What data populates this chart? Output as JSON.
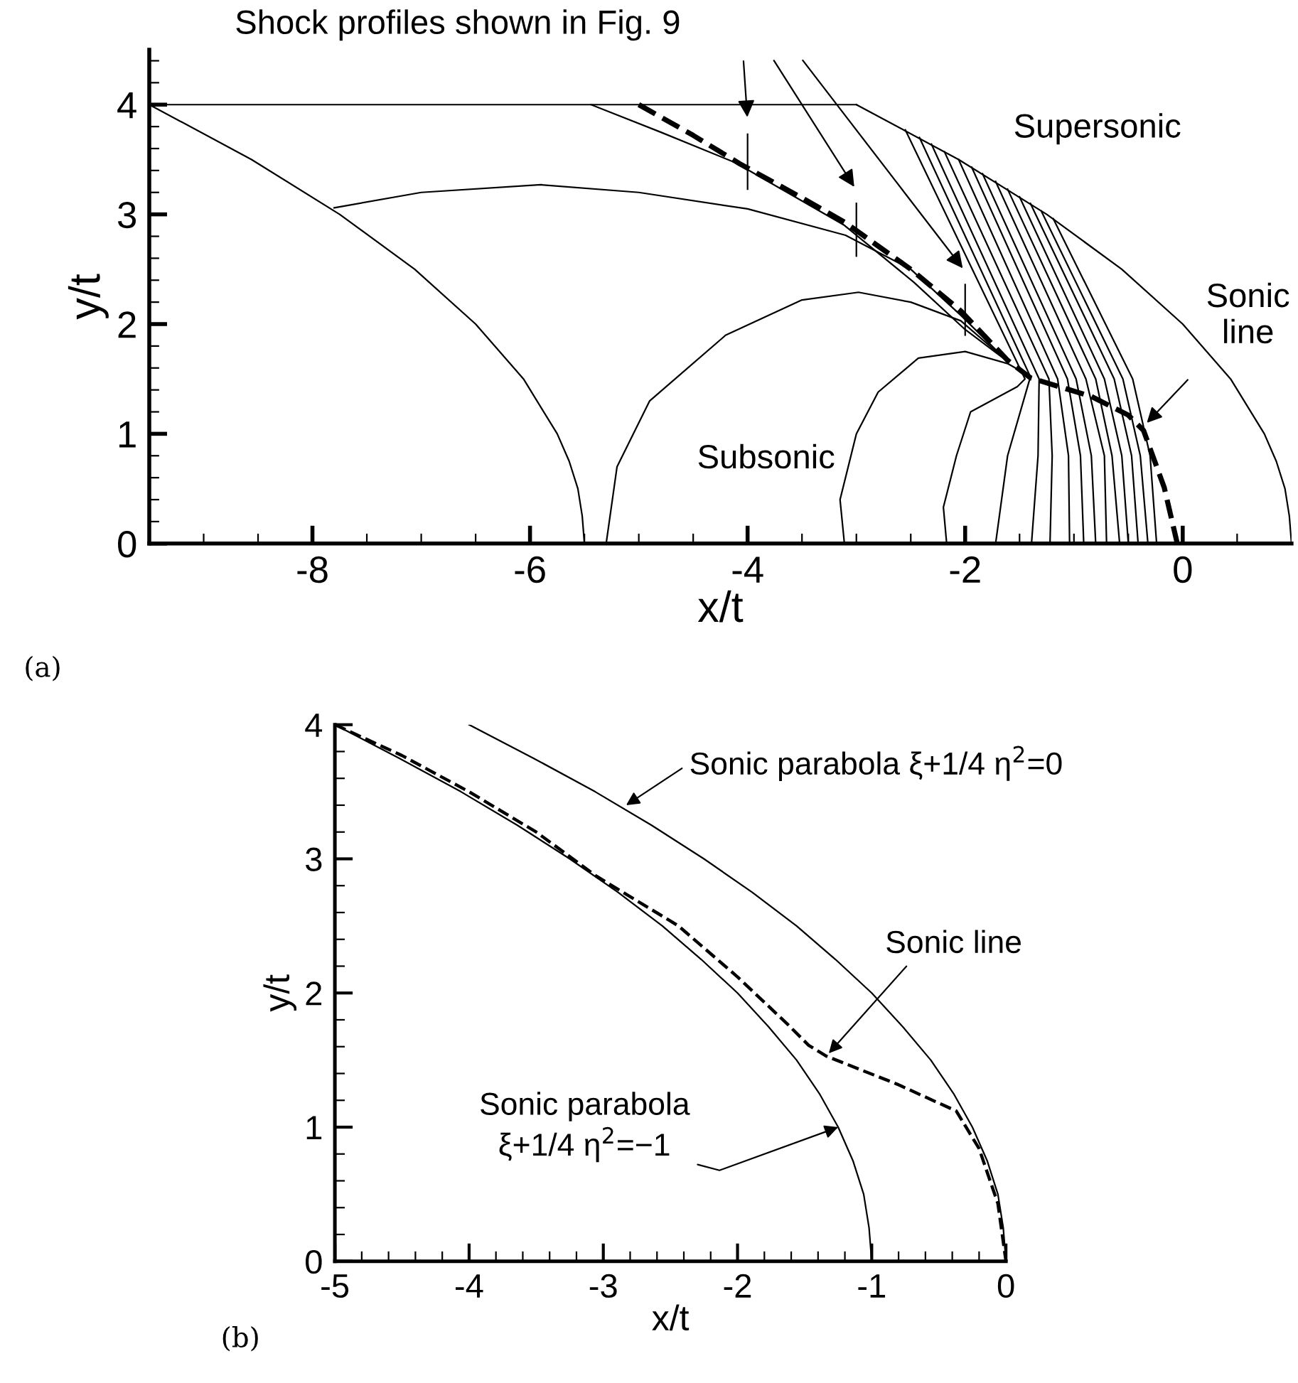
{
  "chart_data": [
    {
      "type": "line",
      "title": "(a)",
      "xlabel": "x/t",
      "ylabel": "y/t",
      "xlim": [
        -9.5,
        1
      ],
      "ylim": [
        0,
        4.5
      ],
      "xticks": [
        {
          "value": -9.5,
          "label": null
        },
        {
          "value": -9,
          "label": null
        },
        {
          "value": -8.5,
          "label": null
        },
        -8,
        {
          "value": -7.5,
          "label": null
        },
        {
          "value": -7,
          "label": null
        },
        {
          "value": -6.5,
          "label": null
        },
        -6,
        {
          "value": -5.5,
          "label": null
        },
        {
          "value": -5,
          "label": null
        },
        {
          "value": -4.5,
          "label": null
        },
        -4,
        {
          "value": -3.5,
          "label": null
        },
        {
          "value": -3,
          "label": null
        },
        {
          "value": -2.5,
          "label": null
        },
        -2,
        {
          "value": -1.5,
          "label": null
        },
        {
          "value": -1,
          "label": null
        },
        {
          "value": -0.5,
          "label": null
        },
        0,
        {
          "value": 0.5,
          "label": null
        }
      ],
      "yticks": [
        0,
        {
          "value": 0.2,
          "label": null
        },
        {
          "value": 0.4,
          "label": null
        },
        {
          "value": 0.6,
          "label": null
        },
        {
          "value": 0.8,
          "label": null
        },
        1,
        {
          "value": 1.2,
          "label": null
        },
        {
          "value": 1.4,
          "label": null
        },
        {
          "value": 1.6,
          "label": null
        },
        {
          "value": 1.8,
          "label": null
        },
        2,
        {
          "value": 2.2,
          "label": null
        },
        {
          "value": 2.4,
          "label": null
        },
        {
          "value": 2.6,
          "label": null
        },
        {
          "value": 2.8,
          "label": null
        },
        3,
        {
          "value": 3.2,
          "label": null
        },
        {
          "value": 3.4,
          "label": null
        },
        {
          "value": 3.6,
          "label": null
        },
        {
          "value": 3.8,
          "label": null
        },
        4,
        {
          "value": 4.2,
          "label": null
        },
        {
          "value": 4.4,
          "label": null
        }
      ],
      "grid": false,
      "annotations": [
        "Shock profiles shown in Fig. 9",
        "Supersonic",
        "Subsonic",
        {
          "text": "Sonic\nline",
          "x": -0.33,
          "y": 1.1
        }
      ],
      "series": [
        {
          "color": "#000000",
          "x": [
            -9.5,
            -3
          ],
          "values": [
            4,
            4
          ]
        },
        {
          "color": "#000000",
          "x": [
            -3,
            -2.06,
            -1.25,
            -0.56,
            0,
            0.44,
            0.75,
            0.86,
            0.94,
            0.98,
            1
          ],
          "values": [
            4,
            3.5,
            3,
            2.5,
            2,
            1.5,
            1,
            0.75,
            0.5,
            0.25,
            0
          ]
        },
        {
          "color": "#000000",
          "x": [
            -9.5,
            -8.56,
            -7.75,
            -7.06,
            -6.5,
            -6.06,
            -5.75,
            -5.64,
            -5.56,
            -5.52,
            -5.5
          ],
          "values": [
            4,
            3.5,
            3,
            2.5,
            2,
            1.5,
            1,
            0.75,
            0.5,
            0.25,
            0
          ]
        },
        {
          "color": "#000000",
          "x": [
            -7.8,
            -7,
            -5.9,
            -5,
            -4,
            -3.1,
            -2.5,
            -2.04,
            -1.61
          ],
          "values": [
            3.06,
            3.2,
            3.27,
            3.2,
            3.05,
            2.81,
            2.5,
            2.08,
            1.66
          ]
        },
        {
          "color": "#000000",
          "x": [
            -5.44,
            -4.8,
            -4.11,
            -3.11,
            -2.47,
            -2,
            -1.61
          ],
          "values": [
            4,
            3.75,
            3.47,
            2.9,
            2.38,
            1.95,
            1.66
          ]
        },
        {
          "color": "#000000",
          "x": [
            -5.3,
            -5.2,
            -4.9,
            -4.2,
            -3.5,
            -2.98,
            -2.5,
            -2.04,
            -1.61
          ],
          "values": [
            0,
            0.7,
            1.3,
            1.9,
            2.22,
            2.29,
            2.2,
            2.03,
            1.66
          ]
        },
        {
          "color": "#000000",
          "x": [
            -3.11,
            -3.15,
            -3,
            -2.8,
            -2.43,
            -2,
            -1.61,
            -1.45
          ],
          "values": [
            0,
            0.4,
            1,
            1.38,
            1.69,
            1.75,
            1.64,
            1.55
          ]
        },
        {
          "color": "#000000",
          "x": [
            -2.17,
            -2.2,
            -2.08,
            -1.95,
            -1.52,
            -1.45,
            -2.55
          ],
          "values": [
            0,
            0.33,
            0.8,
            1.2,
            1.43,
            1.5,
            3.77
          ]
        },
        {
          "color": "#000000",
          "x": [
            -1.72,
            -1.61,
            -1.4,
            -2.42
          ],
          "values": [
            0,
            0.8,
            1.52,
            3.7
          ]
        },
        {
          "color": "#000000",
          "x": [
            -1.39,
            -1.33,
            -1.32,
            -2.31
          ],
          "values": [
            0,
            0.8,
            1.5,
            3.64
          ]
        },
        {
          "color": "#000000",
          "x": [
            -1.22,
            -1.2,
            -1.23,
            -2.19
          ],
          "values": [
            0,
            0.8,
            1.5,
            3.57
          ]
        },
        {
          "color": "#000000",
          "x": [
            -1.04,
            -1.05,
            -1.15,
            -2.06
          ],
          "values": [
            0,
            0.8,
            1.5,
            3.5
          ]
        },
        {
          "color": "#000000",
          "x": [
            -0.91,
            -0.94,
            -1.06,
            -1.94
          ],
          "values": [
            0,
            0.8,
            1.5,
            3.43
          ]
        },
        {
          "color": "#000000",
          "x": [
            -0.8,
            -0.84,
            -0.98,
            -1.84
          ],
          "values": [
            0,
            0.8,
            1.5,
            3.37
          ]
        },
        {
          "color": "#000000",
          "x": [
            -0.7,
            -0.72,
            -0.89,
            -1.72
          ],
          "values": [
            0,
            0.8,
            1.5,
            3.3
          ]
        },
        {
          "color": "#000000",
          "x": [
            -0.58,
            -0.65,
            -0.8,
            -1.61
          ],
          "values": [
            0,
            0.8,
            1.5,
            3.23
          ]
        },
        {
          "color": "#000000",
          "x": [
            -0.5,
            -0.56,
            -0.72,
            -1.5
          ],
          "values": [
            0,
            0.8,
            1.5,
            3.16
          ]
        },
        {
          "color": "#000000",
          "x": [
            -0.41,
            -0.47,
            -0.63,
            -1.4
          ],
          "values": [
            0,
            0.8,
            1.5,
            3.1
          ]
        },
        {
          "color": "#000000",
          "x": [
            -0.32,
            -0.39,
            -0.55,
            -1.3
          ],
          "values": [
            0,
            0.8,
            1.5,
            3.03
          ]
        },
        {
          "color": "#000000",
          "x": [
            -0.24,
            -0.3,
            -0.46,
            -1.19
          ],
          "values": [
            0,
            0.8,
            1.5,
            2.96
          ]
        },
        {
          "color": "#000000",
          "line_style": "dashed",
          "x": [
            -5,
            -4.5,
            -4.07,
            -3.5,
            -3.11,
            -2.5,
            -2.04,
            -1.61,
            -1.4,
            -0.84,
            -0.5,
            -0.36,
            -0.17,
            -0.05
          ],
          "values": [
            4,
            3.72,
            3.46,
            3.15,
            2.93,
            2.5,
            2.12,
            1.67,
            1.51,
            1.34,
            1.17,
            1.03,
            0.51,
            0
          ]
        },
        {
          "color": "#000000",
          "x": [
            -4,
            -4
          ],
          "values": [
            3.23,
            3.73
          ]
        },
        {
          "color": "#000000",
          "x": [
            -3,
            -3
          ],
          "values": [
            2.62,
            3.1
          ]
        },
        {
          "color": "#000000",
          "x": [
            -2,
            -2
          ],
          "values": [
            1.9,
            2.36
          ]
        }
      ]
    },
    {
      "type": "line",
      "title": "(b)",
      "xlabel": "x/t",
      "ylabel": "y/t",
      "xlim": [
        -5,
        0
      ],
      "ylim": [
        0,
        4
      ],
      "xticks": [
        -5,
        {
          "value": -4.8,
          "label": null
        },
        {
          "value": -4.6,
          "label": null
        },
        {
          "value": -4.4,
          "label": null
        },
        {
          "value": -4.2,
          "label": null
        },
        -4,
        {
          "value": -3.8,
          "label": null
        },
        {
          "value": -3.6,
          "label": null
        },
        {
          "value": -3.4,
          "label": null
        },
        {
          "value": -3.2,
          "label": null
        },
        -3,
        {
          "value": -2.8,
          "label": null
        },
        {
          "value": -2.6,
          "label": null
        },
        {
          "value": -2.4,
          "label": null
        },
        {
          "value": -2.2,
          "label": null
        },
        -2,
        {
          "value": -1.8,
          "label": null
        },
        {
          "value": -1.6,
          "label": null
        },
        {
          "value": -1.4,
          "label": null
        },
        {
          "value": -1.2,
          "label": null
        },
        -1,
        {
          "value": -0.8,
          "label": null
        },
        {
          "value": -0.6,
          "label": null
        },
        {
          "value": -0.4,
          "label": null
        },
        {
          "value": -0.2,
          "label": null
        },
        0
      ],
      "yticks": [
        0,
        {
          "value": 0.2,
          "label": null
        },
        {
          "value": 0.4,
          "label": null
        },
        {
          "value": 0.6,
          "label": null
        },
        {
          "value": 0.8,
          "label": null
        },
        1,
        {
          "value": 1.2,
          "label": null
        },
        {
          "value": 1.4,
          "label": null
        },
        {
          "value": 1.6,
          "label": null
        },
        {
          "value": 1.8,
          "label": null
        },
        2,
        {
          "value": 2.2,
          "label": null
        },
        {
          "value": 2.4,
          "label": null
        },
        {
          "value": 2.6,
          "label": null
        },
        {
          "value": 2.8,
          "label": null
        },
        3,
        {
          "value": 3.2,
          "label": null
        },
        {
          "value": 3.4,
          "label": null
        },
        {
          "value": 3.6,
          "label": null
        },
        {
          "value": 3.8,
          "label": null
        },
        4
      ],
      "grid": false,
      "annotations": [
        {
          "text": "Sonic parabola ξ+1/4 η$^{2}$=0",
          "x": -2.83,
          "y": 3.4
        },
        {
          "text": "Sonic line",
          "x": -1.32,
          "y": 1.55
        },
        {
          "text": "Sonic parabola\nξ+1/4 η$^{2}$=−1",
          "x": -1.25,
          "y": 1.0
        }
      ],
      "series": [
        {
          "color": "#000000",
          "x": [
            -5,
            -4.52,
            -4.06,
            -3.64,
            -3.25,
            -2.89,
            -2.56,
            -2.27,
            -2,
            -1.77,
            -1.56,
            -1.39,
            -1.25,
            -1.14,
            -1.06,
            -1.02,
            -1
          ],
          "values": [
            4,
            3.75,
            3.5,
            3.25,
            3,
            2.75,
            2.5,
            2.25,
            2,
            1.75,
            1.5,
            1.25,
            1,
            0.75,
            0.5,
            0.25,
            0
          ]
        },
        {
          "color": "#000000",
          "x": [
            -4,
            -3.52,
            -3.06,
            -2.64,
            -2.25,
            -1.89,
            -1.56,
            -1.27,
            -1,
            -0.77,
            -0.56,
            -0.39,
            -0.25,
            -0.14,
            -0.06,
            -0.02,
            0
          ],
          "values": [
            4,
            3.75,
            3.5,
            3.25,
            3,
            2.75,
            2.5,
            2.25,
            2,
            1.75,
            1.5,
            1.25,
            1,
            0.75,
            0.5,
            0.25,
            0
          ]
        },
        {
          "color": "#000000",
          "line_style": "dashed",
          "x": [
            -5,
            -4.5,
            -4,
            -3.5,
            -3.05,
            -2.44,
            -2,
            -1.63,
            -1.47,
            -1.34,
            -0.81,
            -0.37,
            -0.2,
            -0.06,
            0
          ],
          "values": [
            4,
            3.77,
            3.5,
            3.2,
            2.87,
            2.5,
            2.12,
            1.77,
            1.61,
            1.53,
            1.32,
            1.12,
            0.84,
            0.43,
            0
          ]
        }
      ]
    }
  ]
}
